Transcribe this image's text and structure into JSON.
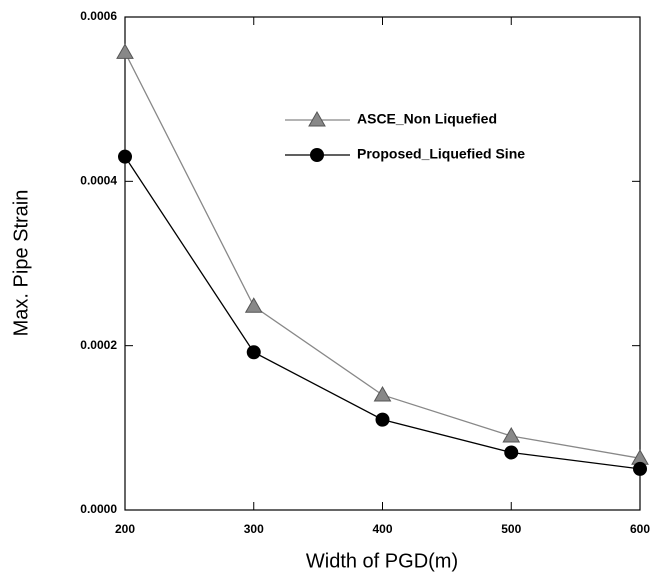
{
  "chart_data": {
    "type": "line",
    "xlabel": "Width of PGD(m)",
    "ylabel": "Max. Pipe Strain",
    "x": [
      200,
      300,
      400,
      500,
      600
    ],
    "series": [
      {
        "name": "ASCE_Non Liquefied",
        "color": "#888888",
        "marker": "triangle",
        "values": [
          0.000557,
          0.000248,
          0.00014,
          9e-05,
          6.3e-05
        ]
      },
      {
        "name": "Proposed_Liquefied Sine",
        "color": "#000000",
        "marker": "circle",
        "values": [
          0.00043,
          0.000192,
          0.00011,
          7e-05,
          5e-05
        ]
      }
    ],
    "xlim": [
      200,
      600
    ],
    "xticks": [
      200,
      300,
      400,
      500,
      600
    ],
    "ylim": [
      0,
      0.0006
    ],
    "yticks": [
      {
        "value": 0,
        "label": "0.0000"
      },
      {
        "value": 0.0002,
        "label": "0.0002"
      },
      {
        "value": 0.0004,
        "label": "0.0004"
      },
      {
        "value": 0.0006,
        "label": "0.0006"
      }
    ],
    "legend": "upper right"
  }
}
